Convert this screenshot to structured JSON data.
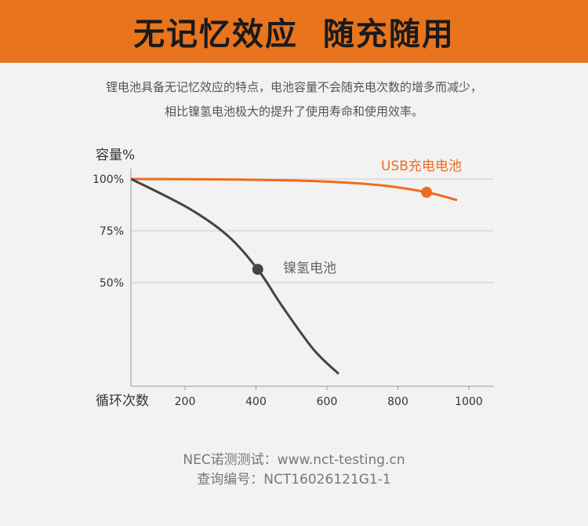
{
  "banner": {
    "title": "无记忆效应  随充随用"
  },
  "description": [
    "锂电池具备无记忆效应的特点，电池容量不会随充电次数的增多而减少，",
    "相比镍氢电池极大的提升了使用寿命和使用效率。"
  ],
  "chart_data": {
    "type": "line",
    "ylabel": "容量%",
    "xlabel": "循环次数",
    "yticks": [
      "100%",
      "75%",
      "50%"
    ],
    "ytick_values": [
      100,
      75,
      50
    ],
    "xticks": [
      "200",
      "400",
      "600",
      "800",
      "1000"
    ],
    "xtick_values": [
      200,
      400,
      600,
      800,
      1000
    ],
    "xlim": [
      48,
      1060
    ],
    "ylim": [
      0,
      100
    ],
    "grid": true,
    "series": [
      {
        "name": "USB充电电池",
        "color": "#f26b1d",
        "x": [
          48,
          300,
          562,
          750,
          881,
          967
        ],
        "y": [
          100,
          99.8,
          99,
          97,
          93.6,
          89.8
        ],
        "marker": {
          "x": 881,
          "y": 93.6
        }
      },
      {
        "name": "镍氢电池",
        "color": "#444444",
        "x": [
          48,
          209,
          320,
          405,
          474,
          562,
          633
        ],
        "y": [
          100,
          86,
          72.7,
          56.4,
          38.6,
          17.8,
          6
        ],
        "marker": {
          "x": 405,
          "y": 56.4
        }
      }
    ]
  },
  "footer": [
    "NEC诺测测试：www.nct-testing.cn",
    "查询编号：NCT16026121G1-1"
  ]
}
